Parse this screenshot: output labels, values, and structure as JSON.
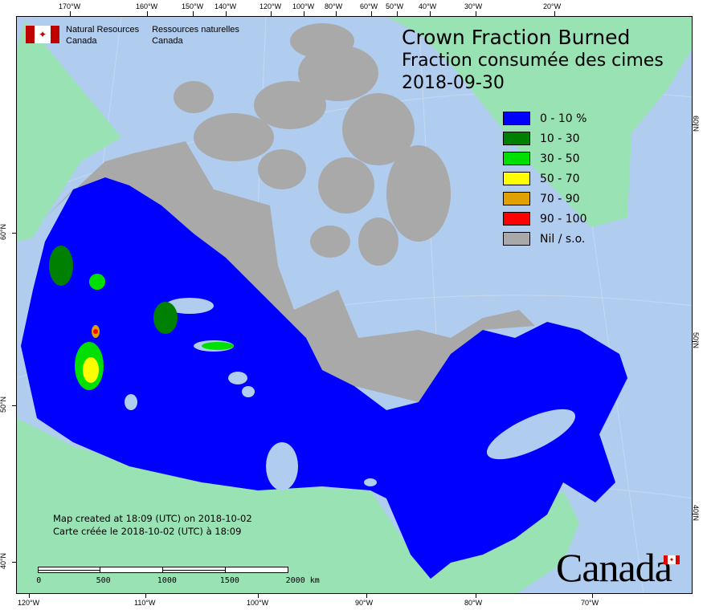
{
  "header": {
    "agency_en": [
      "Natural Resources",
      "Canada"
    ],
    "agency_fr": [
      "Ressources naturelles",
      "Canada"
    ],
    "title_en": "Crown Fraction Burned",
    "title_fr": "Fraction consumée des cimes",
    "date": "2018-09-30"
  },
  "legend": [
    {
      "label": "0 - 10 %",
      "color": "#0000ff"
    },
    {
      "label": "10 - 30",
      "color": "#008000"
    },
    {
      "label": "30 - 50",
      "color": "#00e000"
    },
    {
      "label": "50 - 70",
      "color": "#ffff00"
    },
    {
      "label": "70 - 90",
      "color": "#e0a000"
    },
    {
      "label": "90 - 100",
      "color": "#ff0000"
    },
    {
      "label": "Nil / s.o.",
      "color": "#a9a9a9"
    }
  ],
  "credit": {
    "line_en": "Map created at 18:09 (UTC) on 2018-10-02",
    "line_fr": "Carte créée le 2018-10-02 (UTC) à 18:09"
  },
  "scale_bar": {
    "labels": [
      "0",
      "500",
      "1000",
      "1500",
      "2000  km"
    ]
  },
  "axes": {
    "top": [
      "170°W",
      "160°W",
      "150°W",
      "140°W",
      "120°W",
      "100°W",
      "80°W",
      "60°W",
      "50°W",
      "40°W",
      "30°W",
      "20°W"
    ],
    "bottom": [
      "120°W",
      "110°W",
      "100°W",
      "90°W",
      "80°W",
      "70°W"
    ],
    "left": [
      "60°N",
      "50°N",
      "40°N"
    ],
    "right": [
      "60°N",
      "50°N",
      "40°N"
    ]
  },
  "wordmark": "Canada",
  "colors": {
    "ocean": "#b0cdf0",
    "foreign_land": "#98e2b4",
    "nil": "#a9a9a9",
    "low": "#0000ff"
  }
}
